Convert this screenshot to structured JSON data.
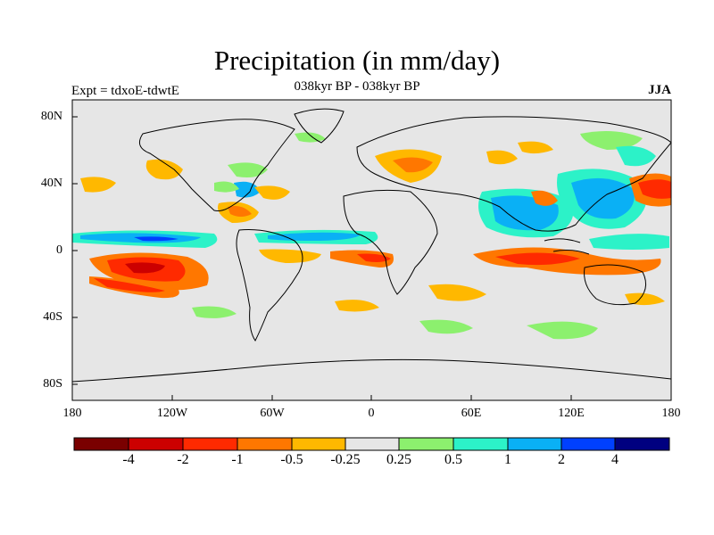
{
  "title": "Precipitation (in mm/day)",
  "subtitle": "038kyr BP - 038kyr BP",
  "left_label": "Expt = tdxoE-tdwtE",
  "right_label": "JJA",
  "lat_ticks": [
    "80N",
    "40N",
    "0",
    "40S",
    "80S"
  ],
  "lon_ticks": [
    "180",
    "120W",
    "60W",
    "0",
    "60E",
    "120E",
    "180"
  ],
  "colorbar": {
    "labels": [
      "-4",
      "-2",
      "-1",
      "-0.5",
      "-0.25",
      "0.25",
      "0.5",
      "1",
      "2",
      "4"
    ],
    "colors": [
      "#7a0000",
      "#cc0000",
      "#ff2a00",
      "#ff7700",
      "#ffb800",
      "#e6e6e6",
      "#8cf06e",
      "#2cf2c8",
      "#0ab0f5",
      "#0040ff",
      "#000080"
    ]
  },
  "colors": {
    "background": "#e6e6e6",
    "coastline": "#000000"
  }
}
